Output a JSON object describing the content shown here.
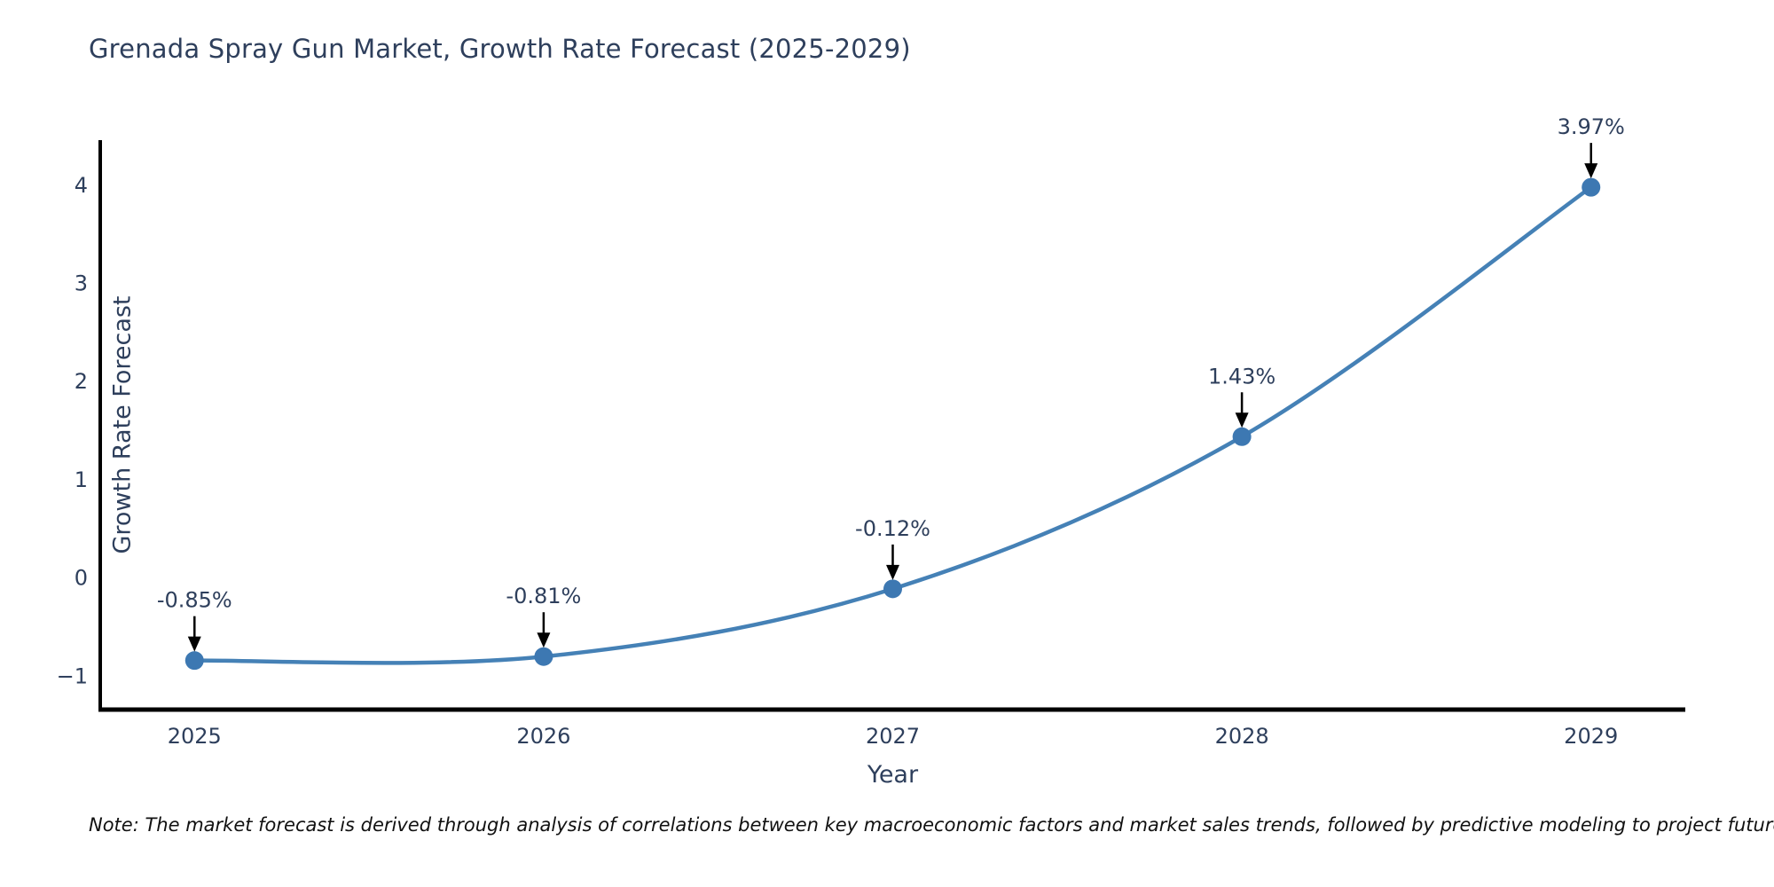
{
  "title": "Grenada Spray Gun Market, Growth Rate Forecast (2025-2029)",
  "note": "Note: The market forecast is derived through analysis of correlations between key macroeconomic factors and market sales trends, followed by predictive modeling to project future sales",
  "chart_data": {
    "type": "line",
    "title": "Grenada Spray Gun Market, Growth Rate Forecast (2025-2029)",
    "xlabel": "Year",
    "ylabel": "Growth Rate Forecast",
    "x": [
      2025,
      2026,
      2027,
      2028,
      2029
    ],
    "series": [
      {
        "name": "Growth Rate Forecast",
        "values": [
          -0.85,
          -0.81,
          -0.12,
          1.43,
          3.97
        ]
      }
    ],
    "point_labels": [
      "-0.85%",
      "-0.81%",
      "-0.12%",
      "1.43%",
      "3.97%"
    ],
    "xticks": [
      "2025",
      "2026",
      "2027",
      "2028",
      "2029"
    ],
    "yticks": [
      -1,
      0,
      1,
      2,
      3,
      4
    ],
    "xlim": [
      2024.73,
      2029.27
    ],
    "ylim": [
      -1.35,
      4.45
    ],
    "grid": false,
    "legend": "none",
    "line_style": "spline",
    "colors": {
      "line": "#4581b6",
      "marker": "#3d78b2",
      "arrow": "#000000",
      "axis": "#000000",
      "tick_text": "#2e3f5c",
      "title_text": "#2e3f5c",
      "note_text": "#111111",
      "background": "#ffffff"
    }
  }
}
